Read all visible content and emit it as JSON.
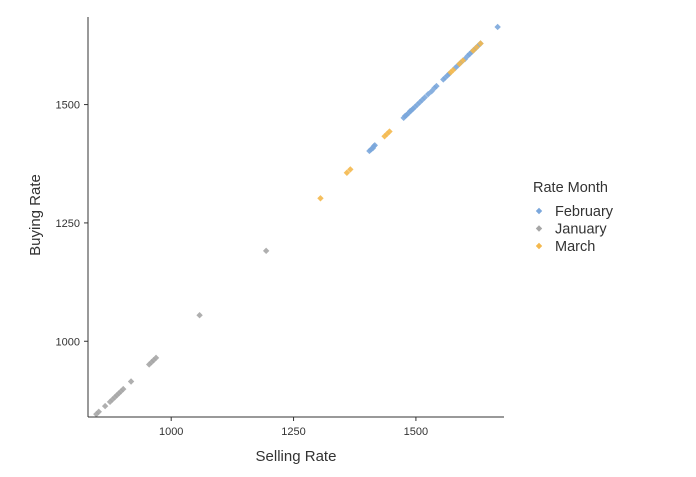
{
  "chart_data": {
    "type": "scatter",
    "title": "",
    "xlabel": "Selling Rate",
    "ylabel": "Buying Rate",
    "xlim": [
      830,
      1680
    ],
    "ylim": [
      840,
      1685
    ],
    "x_ticks": [
      1000,
      1250,
      1500
    ],
    "y_ticks": [
      1000,
      1250,
      1500
    ],
    "grid": false,
    "legend_title": "Rate Month",
    "legend_position": "right",
    "series": [
      {
        "name": "February",
        "color": "#7ba7dc",
        "points": [
          [
            1405,
            1402
          ],
          [
            1408,
            1405
          ],
          [
            1412,
            1408
          ],
          [
            1414,
            1412
          ],
          [
            1416,
            1414
          ],
          [
            1475,
            1472
          ],
          [
            1478,
            1476
          ],
          [
            1481,
            1478
          ],
          [
            1485,
            1482
          ],
          [
            1488,
            1486
          ],
          [
            1491,
            1488
          ],
          [
            1494,
            1491
          ],
          [
            1498,
            1495
          ],
          [
            1503,
            1500
          ],
          [
            1508,
            1505
          ],
          [
            1513,
            1510
          ],
          [
            1518,
            1515
          ],
          [
            1525,
            1522
          ],
          [
            1532,
            1528
          ],
          [
            1538,
            1535
          ],
          [
            1542,
            1539
          ],
          [
            1556,
            1553
          ],
          [
            1560,
            1557
          ],
          [
            1565,
            1562
          ],
          [
            1568,
            1565
          ],
          [
            1580,
            1577
          ],
          [
            1586,
            1583
          ],
          [
            1592,
            1589
          ],
          [
            1600,
            1596
          ],
          [
            1606,
            1603
          ],
          [
            1610,
            1607
          ],
          [
            1614,
            1611
          ],
          [
            1618,
            1615
          ],
          [
            1622,
            1619
          ],
          [
            1627,
            1624
          ],
          [
            1632,
            1629
          ],
          [
            1667,
            1664
          ]
        ]
      },
      {
        "name": "January",
        "color": "#a6a6a6",
        "points": [
          [
            847,
            846
          ],
          [
            852,
            851
          ],
          [
            865,
            863
          ],
          [
            875,
            872
          ],
          [
            880,
            877
          ],
          [
            885,
            882
          ],
          [
            889,
            886
          ],
          [
            893,
            890
          ],
          [
            897,
            894
          ],
          [
            902,
            899
          ],
          [
            918,
            915
          ],
          [
            955,
            951
          ],
          [
            960,
            956
          ],
          [
            964,
            960
          ],
          [
            969,
            965
          ],
          [
            1058,
            1055
          ],
          [
            1194,
            1191
          ]
        ]
      },
      {
        "name": "March",
        "color": "#f4b84d",
        "points": [
          [
            1305,
            1302
          ],
          [
            1359,
            1356
          ],
          [
            1366,
            1363
          ],
          [
            1436,
            1433
          ],
          [
            1441,
            1438
          ],
          [
            1446,
            1443
          ],
          [
            1571,
            1568
          ],
          [
            1576,
            1573
          ],
          [
            1589,
            1586
          ],
          [
            1596,
            1593
          ],
          [
            1617,
            1614
          ],
          [
            1624,
            1621
          ],
          [
            1632,
            1629
          ]
        ]
      }
    ]
  }
}
